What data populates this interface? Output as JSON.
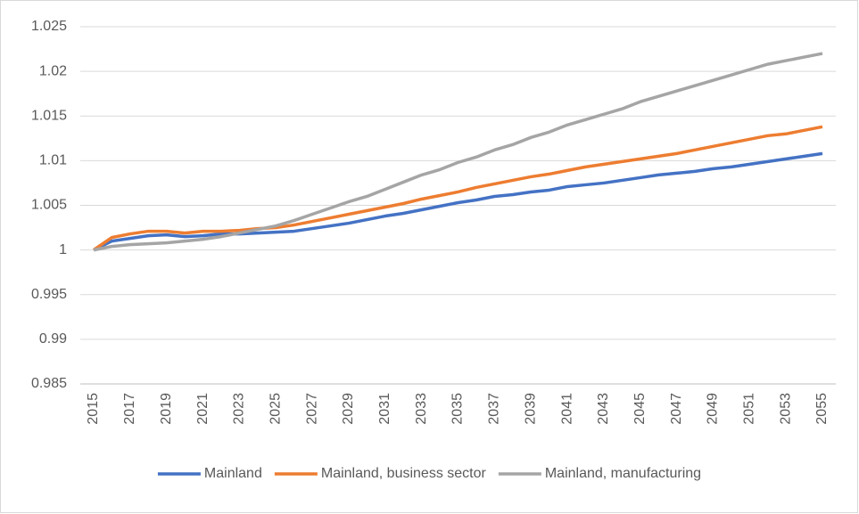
{
  "chart_data": {
    "type": "line",
    "x": [
      2015,
      2016,
      2017,
      2018,
      2019,
      2020,
      2021,
      2022,
      2023,
      2024,
      2025,
      2026,
      2027,
      2028,
      2029,
      2030,
      2031,
      2032,
      2033,
      2034,
      2035,
      2036,
      2037,
      2038,
      2039,
      2040,
      2041,
      2042,
      2043,
      2044,
      2045,
      2046,
      2047,
      2048,
      2049,
      2050,
      2051,
      2052,
      2053,
      2054,
      2055
    ],
    "xlim": [
      2015,
      2055
    ],
    "xticks": [
      2015,
      2017,
      2019,
      2021,
      2023,
      2025,
      2027,
      2029,
      2031,
      2033,
      2035,
      2037,
      2039,
      2041,
      2043,
      2045,
      2047,
      2049,
      2051,
      2053,
      2055
    ],
    "ylim": [
      0.985,
      1.025
    ],
    "yticks": [
      0.985,
      0.99,
      0.995,
      1,
      1.005,
      1.01,
      1.015,
      1.02,
      1.025
    ],
    "grid": true,
    "legend": "bottom",
    "series": [
      {
        "name": "Mainland",
        "color": "#4472c4",
        "values": [
          1.0,
          1.001,
          1.0013,
          1.0016,
          1.0017,
          1.0015,
          1.0016,
          1.0018,
          1.0018,
          1.0019,
          1.002,
          1.0021,
          1.0024,
          1.0027,
          1.003,
          1.0034,
          1.0038,
          1.0041,
          1.0045,
          1.0049,
          1.0053,
          1.0056,
          1.006,
          1.0062,
          1.0065,
          1.0067,
          1.0071,
          1.0073,
          1.0075,
          1.0078,
          1.0081,
          1.0084,
          1.0086,
          1.0088,
          1.0091,
          1.0093,
          1.0096,
          1.0099,
          1.0102,
          1.0105,
          1.0108
        ]
      },
      {
        "name": "Mainland, business sector",
        "color": "#ed7d31",
        "values": [
          1.0,
          1.0014,
          1.0018,
          1.0021,
          1.0021,
          1.0019,
          1.0021,
          1.0021,
          1.0022,
          1.0024,
          1.0025,
          1.0028,
          1.0032,
          1.0036,
          1.004,
          1.0044,
          1.0048,
          1.0052,
          1.0057,
          1.0061,
          1.0065,
          1.007,
          1.0074,
          1.0078,
          1.0082,
          1.0085,
          1.0089,
          1.0093,
          1.0096,
          1.0099,
          1.0102,
          1.0105,
          1.0108,
          1.0112,
          1.0116,
          1.012,
          1.0124,
          1.0128,
          1.013,
          1.0134,
          1.0138
        ]
      },
      {
        "name": "Mainland, manufacturing",
        "color": "#a5a5a5",
        "values": [
          1.0,
          1.0004,
          1.0006,
          1.0007,
          1.0008,
          1.001,
          1.0012,
          1.0015,
          1.0019,
          1.0023,
          1.0027,
          1.0033,
          1.004,
          1.0047,
          1.0054,
          1.006,
          1.0068,
          1.0076,
          1.0084,
          1.009,
          1.0098,
          1.0104,
          1.0112,
          1.0118,
          1.0126,
          1.0132,
          1.014,
          1.0146,
          1.0152,
          1.0158,
          1.0166,
          1.0172,
          1.0178,
          1.0184,
          1.019,
          1.0196,
          1.0202,
          1.0208,
          1.0212,
          1.0216,
          1.022
        ]
      }
    ]
  }
}
